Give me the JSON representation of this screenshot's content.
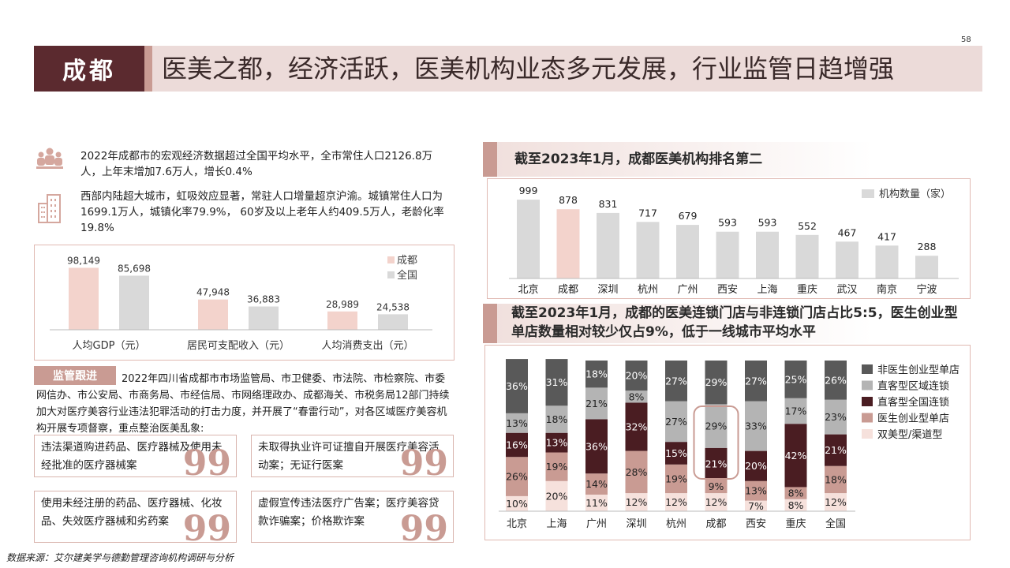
{
  "page_number": "58",
  "header": {
    "city": "成都",
    "headline": "医美之都，经济活跃，医美机构业态多元发展，行业监管日趋增强"
  },
  "stats": [
    {
      "icon": "population-icon",
      "text": "2022年成都市的宏观经济数据超过全国平均水平，全市常住人口2126.8万人，上年末增加7.6万人，增长0.4%"
    },
    {
      "icon": "city-buildings-icon",
      "text": "西部内陆超大城市，虹吸效应显著，常驻人口增量超京沪渝。城镇常住人口为1699.1万人，城镇化率79.9%，  60岁及以上老年人约409.5万人，老龄化率19.8%"
    }
  ],
  "gdp_chart_data": {
    "type": "bar",
    "categories": [
      "人均GDP（元）",
      "居民可支配收入（元）",
      "人均消费支出（元）"
    ],
    "series": [
      {
        "name": "成都",
        "values": [
          98149,
          47948,
          28989
        ],
        "labels": [
          "98,149",
          "47,948",
          "28,989"
        ],
        "color": "#f3d3cc"
      },
      {
        "name": "全国",
        "values": [
          85698,
          36883,
          24538
        ],
        "labels": [
          "85,698",
          "36,883",
          "24,538"
        ],
        "color": "#d9d9d9"
      }
    ],
    "legend_position": "top-right"
  },
  "regulation": {
    "tag": "监管跟进",
    "text": "2022年四川省成都市市场监管局、市卫健委、市法院、市检察院、市委网信办、市公安局、市商务局、市经信局、市网络理政办、成都海关、市税务局12部门持续加大对医疗美容行业违法犯罪活动的打击力度，并开展了“春雷行动”，对各区域医疗美容机构开展专项督察，重点整治医美乱象:",
    "cases": [
      "违法渠道购进药品、医疗器械及使用未经批准的医疗器械案",
      "未取得执业许可证擅自开展医疗美容活动案；无证行医案",
      "使用未经注册的药品、医疗器械、化妆品、失效医疗器械和劣药案",
      "虚假宣传违法医疗广告案；医疗美容贷款诈骗案；价格欺诈案"
    ],
    "quote_mark": "99"
  },
  "panel1": {
    "title": "截至2023年1月，成都医美机构排名第二"
  },
  "panel2": {
    "title": "截至2023年1月，成都的医美连锁门店与非连锁门店占比5:5，医生创业型单店数量相对较少仅占9%，低于一线城市平均水平"
  },
  "chart_data": [
    {
      "type": "bar",
      "categories": [
        "北京",
        "成都",
        "深圳",
        "杭州",
        "广州",
        "西安",
        "上海",
        "重庆",
        "武汉",
        "南京",
        "宁波"
      ],
      "series": [
        {
          "name": "机构数量（家）",
          "values": [
            999,
            878,
            831,
            717,
            679,
            593,
            593,
            552,
            467,
            417,
            288
          ]
        }
      ],
      "highlight_category": "成都",
      "colors": {
        "default": "#d9d9d9",
        "highlight": "#f3d3cc"
      },
      "legend_position": "top-right"
    },
    {
      "type": "bar",
      "stacked": true,
      "categories": [
        "北京",
        "上海",
        "广州",
        "深圳",
        "杭州",
        "成都",
        "西安",
        "重庆",
        "全国"
      ],
      "series": [
        {
          "name": "双美型/渠道型",
          "color": "#f6e1dc",
          "values": [
            10,
            20,
            11,
            12,
            12,
            12,
            7,
            8,
            12
          ],
          "labels": [
            "10%",
            "20%",
            "11%",
            "12%",
            "12%",
            "12%",
            "7%",
            "8%",
            "12%"
          ]
        },
        {
          "name": "医生创业型单店",
          "color": "#c99b93",
          "values": [
            26,
            19,
            14,
            28,
            19,
            9,
            13,
            8,
            18
          ],
          "labels": [
            "26%",
            "19%",
            "14%",
            "28%",
            "19%",
            "9%",
            "13%",
            "8%",
            "18%"
          ]
        },
        {
          "name": "直客型全国连锁",
          "color": "#4a1d22",
          "values": [
            16,
            13,
            36,
            32,
            15,
            21,
            20,
            42,
            21
          ],
          "labels": [
            "16%",
            "13%",
            "36%",
            "32%",
            "15%",
            "21%",
            "20%",
            "42%",
            "21%"
          ]
        },
        {
          "name": "直客型区域连锁",
          "color": "#b4b4b4",
          "values": [
            13,
            18,
            21,
            8,
            27,
            29,
            33,
            17,
            23
          ],
          "labels": [
            "13%",
            "18%",
            "21%",
            "8%",
            "27%",
            "29%",
            "33%",
            "17%",
            "23%"
          ]
        },
        {
          "name": "非医生创业型单店",
          "color": "#595959",
          "values": [
            36,
            31,
            18,
            20,
            27,
            29,
            27,
            25,
            26
          ],
          "labels": [
            "36%",
            "31%",
            "18%",
            "20%",
            "27%",
            "29%",
            "27%",
            "25%",
            "26%"
          ]
        }
      ],
      "highlight_category": "成都",
      "legend_position": "right",
      "ylim": [
        0,
        100
      ]
    }
  ]
}
